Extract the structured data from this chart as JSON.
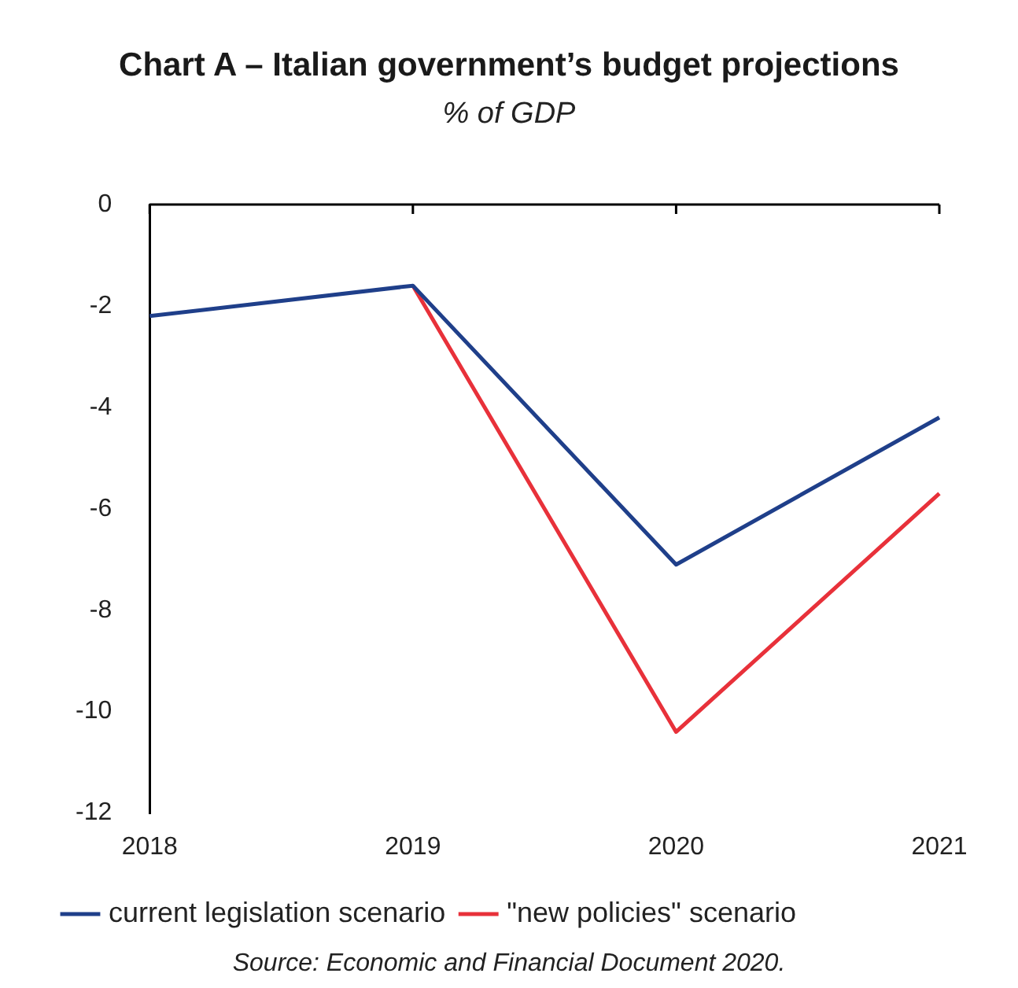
{
  "chart_data": {
    "type": "line",
    "title": "Chart A – Italian government’s budget projections",
    "subtitle": "% of GDP",
    "categories": [
      "2018",
      "2019",
      "2020",
      "2021"
    ],
    "series": [
      {
        "name": "current legislation scenario",
        "color": "#1f3f8a",
        "values": [
          -2.2,
          -1.6,
          -7.1,
          -4.2
        ]
      },
      {
        "name": "\"new policies\" scenario",
        "color": "#e8313a",
        "values": [
          null,
          -1.6,
          -10.4,
          -5.7
        ]
      }
    ],
    "ylim": [
      -12,
      0
    ],
    "yticks": [
      -12,
      -10,
      -8,
      -6,
      -4,
      -2,
      0
    ],
    "grid": false,
    "legend": "bottom",
    "marker": "none",
    "line_style": "solid",
    "annotations": [
      "Source: Economic and Financial Document 2020."
    ]
  }
}
